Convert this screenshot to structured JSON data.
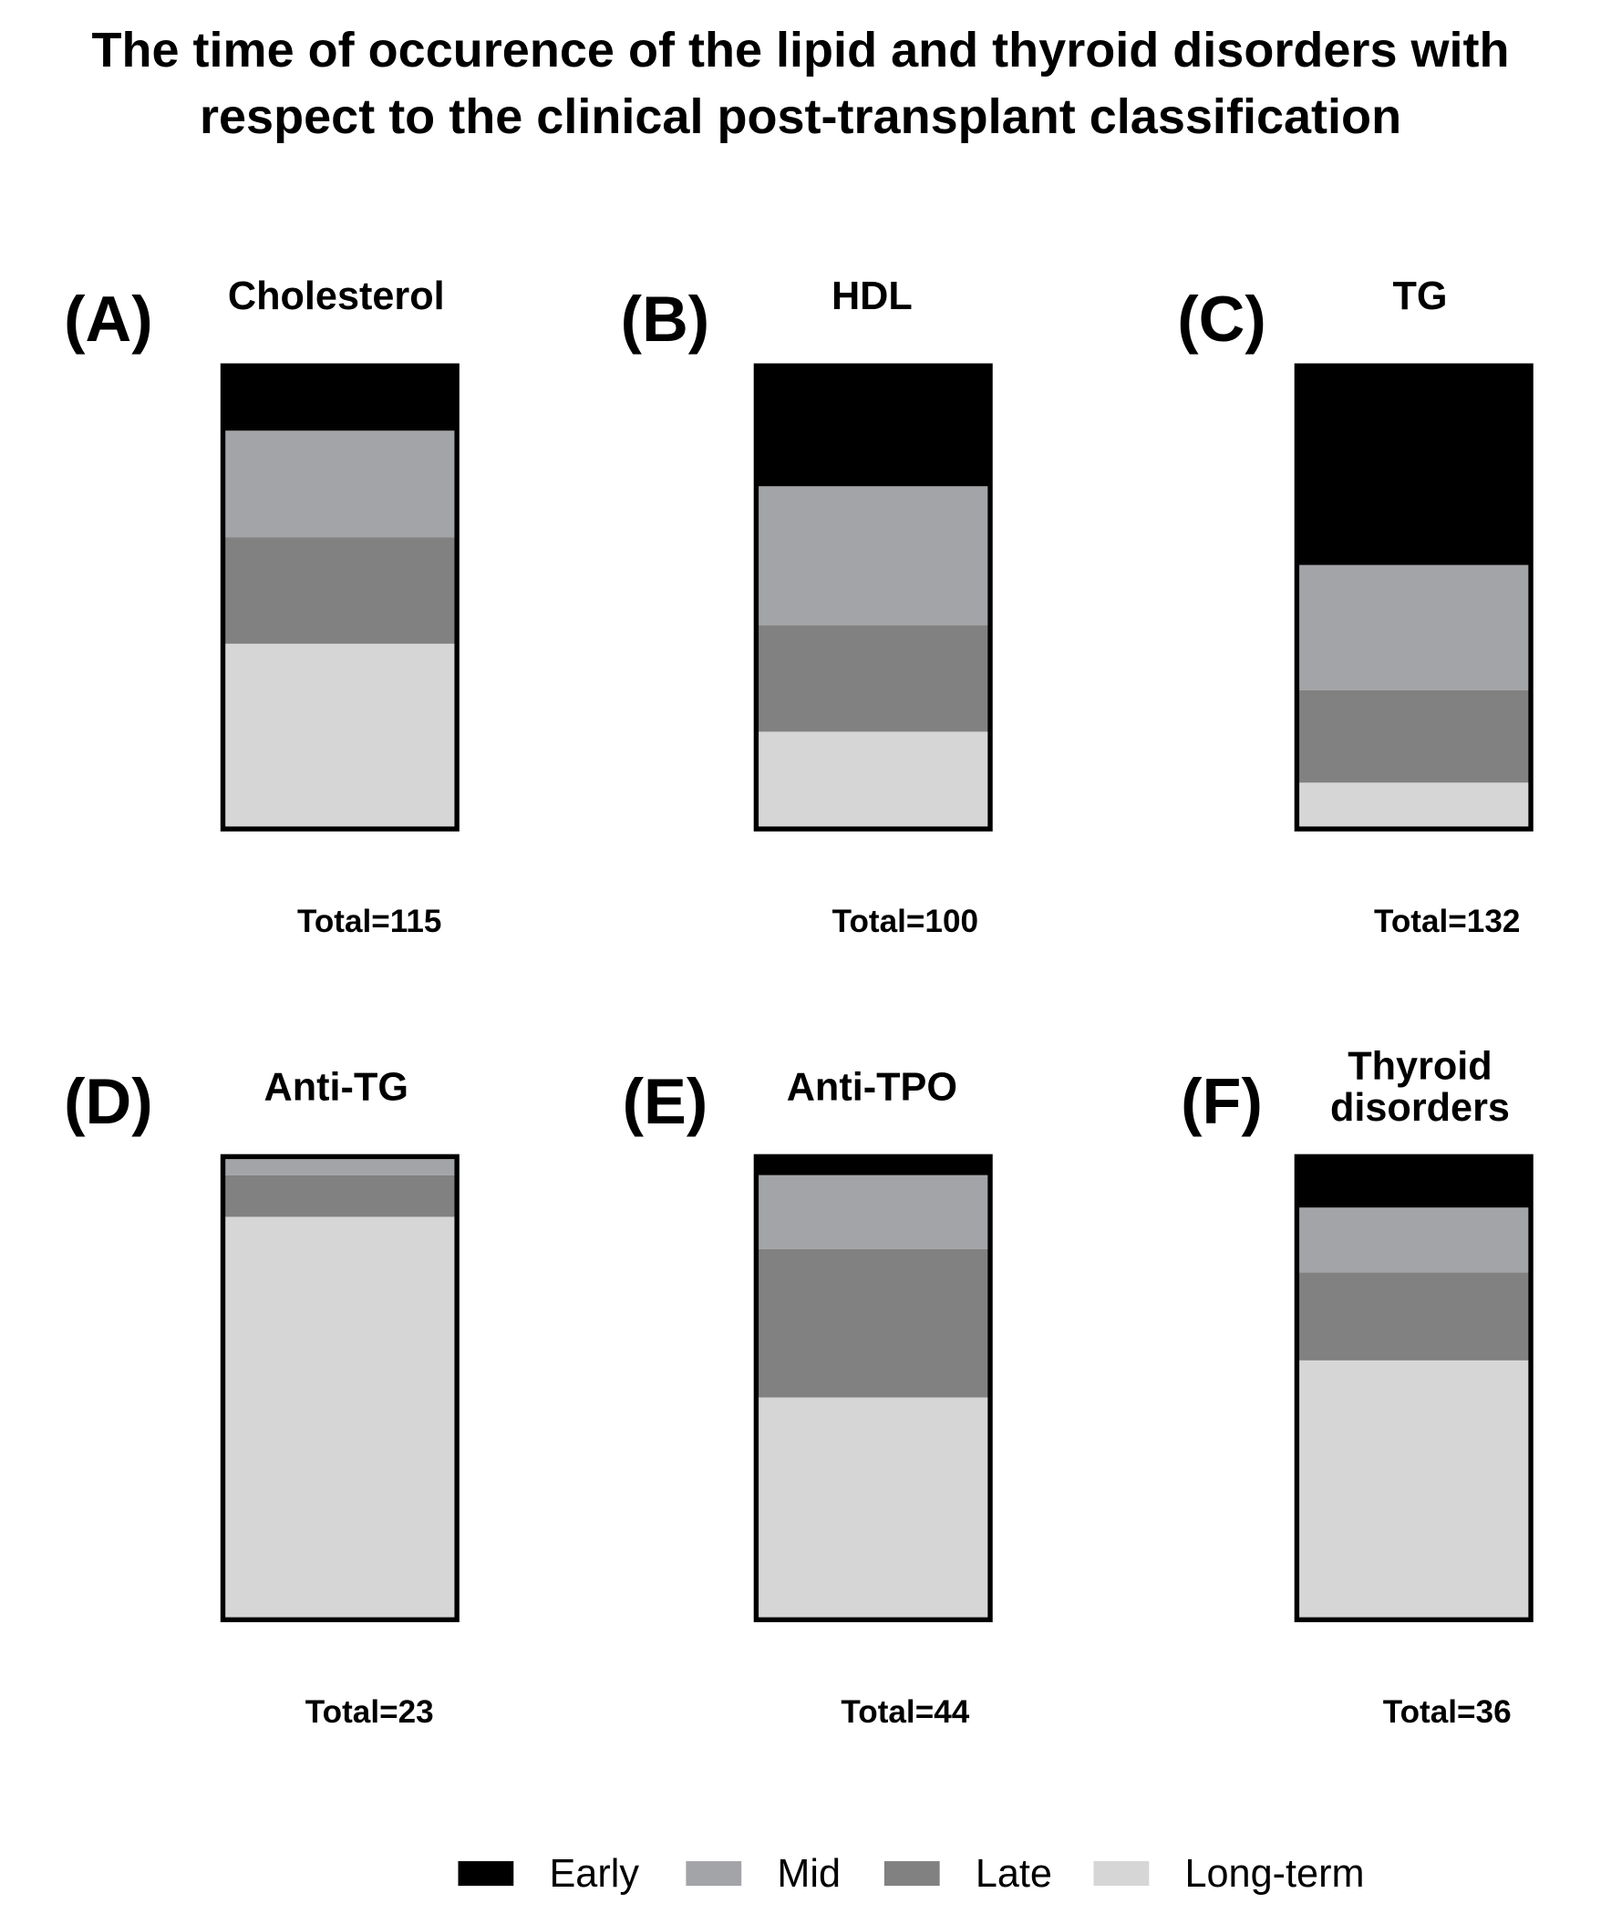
{
  "chart_data": {
    "type": "stacked-bar",
    "title": "The time of occurence of the lipid and thyroid disorders with respect to the clinical post-transplant classification",
    "panel_labels": [
      "(A)",
      "(B)",
      "(C)",
      "(D)",
      "(E)",
      "(F)"
    ],
    "categories": [
      "Cholesterol",
      "HDL",
      "TG",
      "Anti-TG",
      "Anti-TPO",
      "Thyroid disorders"
    ],
    "annotations": [
      "Total=115",
      "Total=100",
      "Total=132",
      "Total=23",
      "Total=44",
      "Total=36"
    ],
    "ylim": [
      0,
      100
    ],
    "series": [
      {
        "name": "Early",
        "color": "#000000",
        "values": [
          14,
          26,
          43,
          0,
          4,
          11
        ]
      },
      {
        "name": "Mid",
        "color": "#a3a4a7",
        "values": [
          23,
          30,
          27,
          4,
          16,
          14
        ]
      },
      {
        "name": "Late",
        "color": "#818181",
        "values": [
          23,
          23,
          20,
          9,
          32,
          19
        ]
      },
      {
        "name": "Long-term",
        "color": "#d6d6d6",
        "values": [
          40,
          21,
          10,
          87,
          48,
          56
        ]
      }
    ]
  }
}
